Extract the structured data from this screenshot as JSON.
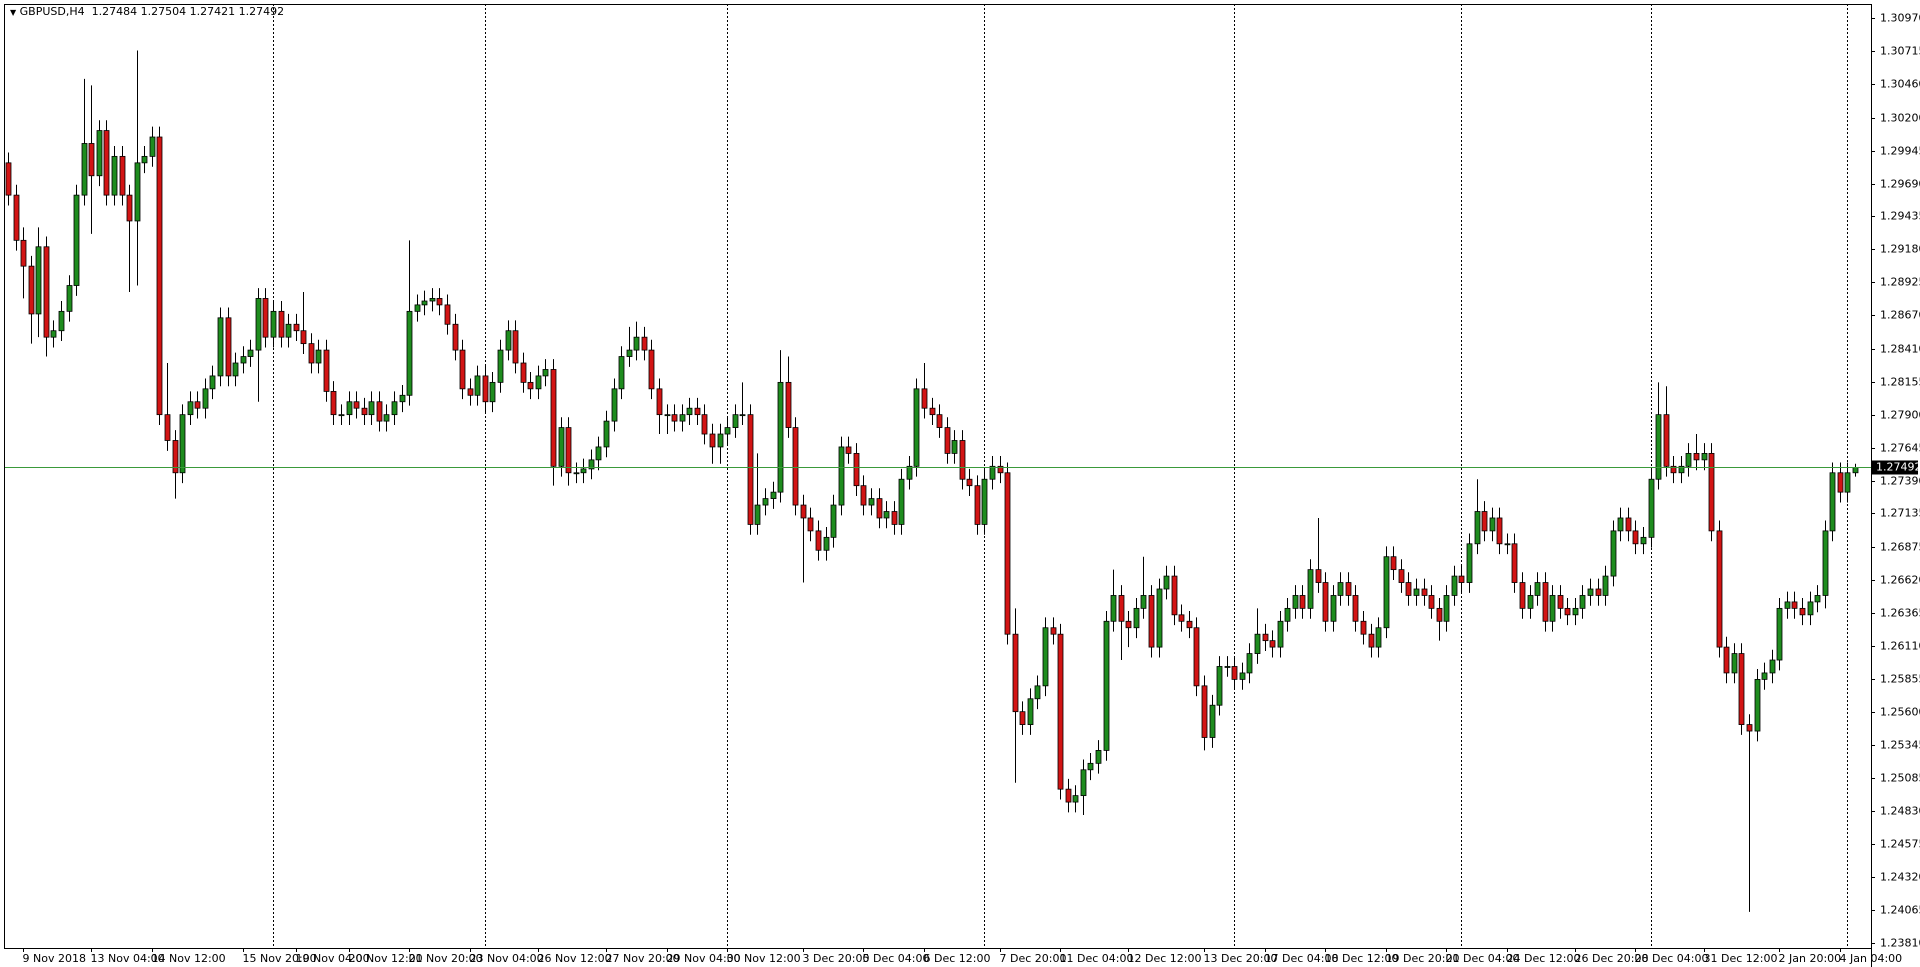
{
  "chart_data": {
    "type": "candlestick",
    "symbol": "GBPUSD,H4",
    "header_values": [
      1.27484,
      1.27504,
      1.27421,
      1.27492
    ],
    "up_color": "#1e8c1e",
    "down_color": "#d21414",
    "price_line_color": "#3a9a3a",
    "ylim": [
      1.2377,
      1.3108
    ],
    "yticks": [
      {
        "value": 1.3097,
        "label": "1.30970"
      },
      1.30715,
      {
        "value": 1.3046,
        "label": "1.30460"
      },
      {
        "value": 1.302,
        "label": "1.30200"
      },
      1.29945,
      {
        "value": 1.2969,
        "label": "1.29690"
      },
      1.29435,
      {
        "value": 1.2918,
        "label": "1.29180"
      },
      1.28925,
      {
        "value": 1.2867,
        "label": "1.28670"
      },
      {
        "value": 1.2841,
        "label": "1.28410"
      },
      1.28155,
      {
        "value": 1.279,
        "label": "1.27900"
      },
      1.27645,
      {
        "value": 1.2739,
        "label": "1.27390"
      },
      1.27135,
      1.26875,
      {
        "value": 1.2662,
        "label": "1.26620"
      },
      1.26365,
      {
        "value": 1.2611,
        "label": "1.26110"
      },
      1.25855,
      {
        "value": 1.256,
        "label": "1.25600"
      },
      1.25345,
      1.25085,
      {
        "value": 1.2483,
        "label": "1.24830"
      },
      1.24575,
      {
        "value": 1.2432,
        "label": "1.24320"
      },
      1.24065,
      {
        "value": 1.2381,
        "label": "1.23810"
      }
    ],
    "x": [
      null,
      null,
      "9 Nov 2018",
      null,
      null,
      null,
      null,
      null,
      null,
      null,
      null,
      "13 Nov 04:00",
      null,
      null,
      null,
      null,
      null,
      null,
      null,
      "14 Nov 12:00",
      null,
      null,
      null,
      null,
      null,
      null,
      null,
      null,
      null,
      null,
      null,
      "15 Nov 20:00",
      null,
      null,
      null,
      null,
      null,
      null,
      "19 Nov 04:00",
      null,
      null,
      null,
      null,
      null,
      null,
      "20 Nov 12:00",
      null,
      null,
      null,
      null,
      null,
      null,
      null,
      "21 Nov 20:00",
      null,
      null,
      null,
      null,
      null,
      null,
      null,
      "23 Nov 04:00",
      null,
      null,
      null,
      null,
      null,
      null,
      null,
      null,
      "26 Nov 12:00",
      null,
      null,
      null,
      null,
      null,
      null,
      null,
      null,
      "27 Nov 20:00",
      null,
      null,
      null,
      null,
      null,
      null,
      null,
      "29 Nov 04:00",
      null,
      null,
      null,
      null,
      null,
      null,
      null,
      "30 Nov 12:00",
      null,
      null,
      null,
      null,
      null,
      null,
      null,
      null,
      null,
      "3 Dec 20:00",
      null,
      null,
      null,
      null,
      null,
      null,
      null,
      "5 Dec 04:00",
      null,
      null,
      null,
      null,
      null,
      null,
      null,
      "6 Dec 12:00",
      null,
      null,
      null,
      null,
      null,
      null,
      null,
      null,
      null,
      "7 Dec 20:00",
      null,
      null,
      null,
      null,
      null,
      null,
      null,
      "11 Dec 04:00",
      null,
      null,
      null,
      null,
      null,
      null,
      null,
      null,
      "12 Dec 12:00",
      null,
      null,
      null,
      null,
      null,
      null,
      null,
      null,
      null,
      "13 Dec 20:00",
      null,
      null,
      null,
      null,
      null,
      null,
      null,
      "17 Dec 04:00",
      null,
      null,
      null,
      null,
      null,
      null,
      null,
      "18 Dec 12:00",
      null,
      null,
      null,
      null,
      null,
      null,
      null,
      "19 Dec 20:00",
      null,
      null,
      null,
      null,
      null,
      null,
      null,
      "21 Dec 04:00",
      null,
      null,
      null,
      null,
      null,
      null,
      null,
      "24 Dec 12:00",
      null,
      null,
      null,
      null,
      null,
      null,
      null,
      null,
      "26 Dec 20:00",
      null,
      null,
      null,
      null,
      null,
      null,
      null,
      "28 Dec 04:00",
      null,
      null,
      null,
      null,
      null,
      null,
      null,
      null,
      "31 Dec 12:00",
      null,
      null,
      null,
      null,
      null,
      null,
      null,
      null,
      null,
      "2 Jan 20:00",
      null,
      null,
      null,
      null,
      null,
      null,
      null,
      "4 Jan 04:00",
      null,
      null
    ],
    "open": [
      1.2985,
      1.296,
      1.2925,
      1.2905,
      1.2868,
      1.292,
      1.285,
      1.2855,
      1.287,
      1.289,
      1.296,
      1.3,
      1.2975,
      1.301,
      1.296,
      1.299,
      1.296,
      1.294,
      1.2985,
      1.299,
      1.3005,
      1.279,
      1.277,
      1.2745,
      1.279,
      1.28,
      1.2795,
      1.281,
      1.282,
      1.2865,
      1.282,
      1.283,
      1.2835,
      1.284,
      1.288,
      1.285,
      1.287,
      1.285,
      1.286,
      1.2855,
      1.2845,
      1.283,
      1.284,
      1.2808,
      1.279,
      1.279,
      1.28,
      1.2795,
      1.279,
      1.28,
      1.2785,
      1.279,
      1.28,
      1.2805,
      1.287,
      1.2875,
      1.2878,
      1.288,
      1.2875,
      1.286,
      1.284,
      1.281,
      1.2805,
      1.282,
      1.28,
      1.2815,
      1.284,
      1.2855,
      1.283,
      1.2815,
      1.281,
      1.282,
      1.2825,
      1.275,
      1.278,
      1.2745,
      1.2745,
      1.2748,
      1.2755,
      1.2765,
      1.2785,
      1.281,
      1.2835,
      1.284,
      1.285,
      1.284,
      1.281,
      1.279,
      1.279,
      1.2785,
      1.279,
      1.2795,
      1.279,
      1.2775,
      1.2765,
      1.2775,
      1.278,
      1.279,
      1.279,
      1.2705,
      1.272,
      1.2725,
      1.273,
      1.2815,
      1.278,
      1.272,
      1.271,
      1.27,
      1.2685,
      1.2695,
      1.272,
      1.2765,
      1.276,
      1.2735,
      1.272,
      1.2725,
      1.271,
      1.2715,
      1.2705,
      1.274,
      1.275,
      1.281,
      1.2795,
      1.279,
      1.278,
      1.276,
      1.277,
      1.274,
      1.2735,
      1.2705,
      1.274,
      1.275,
      1.2745,
      1.262,
      1.256,
      1.255,
      1.257,
      1.258,
      1.2625,
      1.262,
      1.25,
      1.249,
      1.2495,
      1.2515,
      1.252,
      1.253,
      1.263,
      1.265,
      1.263,
      1.2625,
      1.264,
      1.265,
      1.261,
      1.2655,
      1.2665,
      1.2635,
      1.263,
      1.2625,
      1.258,
      1.254,
      1.2565,
      1.2595,
      1.2595,
      1.2585,
      1.259,
      1.2605,
      1.262,
      1.2615,
      1.261,
      1.263,
      1.264,
      1.265,
      1.264,
      1.267,
      1.266,
      1.263,
      1.265,
      1.266,
      1.265,
      1.263,
      1.262,
      1.261,
      1.2625,
      1.268,
      1.267,
      1.266,
      1.265,
      1.2655,
      1.265,
      1.264,
      1.263,
      1.265,
      1.2665,
      1.266,
      1.269,
      1.2715,
      1.27,
      1.271,
      1.269,
      1.269,
      1.266,
      1.264,
      1.265,
      1.266,
      1.263,
      1.265,
      1.264,
      1.2635,
      1.264,
      1.265,
      1.2655,
      1.265,
      1.2665,
      1.27,
      1.271,
      1.27,
      1.269,
      1.2695,
      1.274,
      1.279,
      1.275,
      1.2745,
      1.275,
      1.276,
      1.2755,
      1.276,
      1.27,
      1.261,
      1.259,
      1.2605,
      1.255,
      1.2545,
      1.2585,
      1.259,
      1.26,
      1.264,
      1.2645,
      1.264,
      1.2635,
      1.2645,
      1.265,
      1.27,
      1.2745,
      1.273,
      1.2745
    ],
    "high": [
      1.2993,
      1.2968,
      1.2935,
      1.2913,
      1.2935,
      1.2928,
      1.2863,
      1.2878,
      1.2898,
      1.2968,
      1.305,
      1.3045,
      1.3018,
      1.3018,
      1.2998,
      1.2998,
      1.2968,
      1.3072,
      1.2998,
      1.3013,
      1.3013,
      1.283,
      1.2778,
      1.2798,
      1.2808,
      1.2808,
      1.2818,
      1.2828,
      1.2873,
      1.2873,
      1.2838,
      1.2843,
      1.2848,
      1.2888,
      1.2888,
      1.2878,
      1.2878,
      1.2868,
      1.2868,
      1.2885,
      1.2853,
      1.2848,
      1.2848,
      1.2816,
      1.2798,
      1.2808,
      1.2808,
      1.2803,
      1.2808,
      1.2808,
      1.2798,
      1.2808,
      1.2813,
      1.2925,
      1.2883,
      1.2886,
      1.2888,
      1.2888,
      1.2883,
      1.2868,
      1.2848,
      1.2818,
      1.2828,
      1.2828,
      1.2823,
      1.2848,
      1.2863,
      1.2863,
      1.2838,
      1.2823,
      1.2828,
      1.2833,
      1.2833,
      1.2788,
      1.2788,
      1.2753,
      1.2756,
      1.2763,
      1.2773,
      1.2793,
      1.2818,
      1.2843,
      1.2858,
      1.2862,
      1.2858,
      1.2848,
      1.2818,
      1.2798,
      1.2798,
      1.2798,
      1.2803,
      1.2803,
      1.2798,
      1.2783,
      1.2783,
      1.2788,
      1.2798,
      1.2815,
      1.2798,
      1.276,
      1.2733,
      1.2738,
      1.284,
      1.2835,
      1.2788,
      1.2728,
      1.2718,
      1.2708,
      1.2703,
      1.2728,
      1.2773,
      1.2773,
      1.2768,
      1.2743,
      1.2733,
      1.2733,
      1.2723,
      1.2723,
      1.2748,
      1.2758,
      1.2818,
      1.283,
      1.2803,
      1.2798,
      1.2788,
      1.2778,
      1.2778,
      1.2748,
      1.2743,
      1.2748,
      1.2758,
      1.2758,
      1.2753,
      1.264,
      1.2568,
      1.2578,
      1.2588,
      1.2633,
      1.2633,
      1.2628,
      1.2508,
      1.2503,
      1.2523,
      1.2528,
      1.2538,
      1.2638,
      1.267,
      1.2658,
      1.2638,
      1.2648,
      1.268,
      1.2658,
      1.2663,
      1.2673,
      1.2673,
      1.2643,
      1.2638,
      1.2633,
      1.2588,
      1.2573,
      1.2603,
      1.2603,
      1.2603,
      1.2598,
      1.2613,
      1.264,
      1.2628,
      1.2623,
      1.2638,
      1.2648,
      1.2658,
      1.2658,
      1.2678,
      1.271,
      1.2668,
      1.2658,
      1.2668,
      1.2668,
      1.2658,
      1.2638,
      1.2628,
      1.2633,
      1.2688,
      1.2688,
      1.2678,
      1.2668,
      1.2663,
      1.2663,
      1.2658,
      1.2648,
      1.2658,
      1.2673,
      1.2673,
      1.2698,
      1.274,
      1.2723,
      1.2718,
      1.2718,
      1.2698,
      1.2698,
      1.2668,
      1.2658,
      1.2668,
      1.2668,
      1.2658,
      1.2658,
      1.2648,
      1.2648,
      1.2658,
      1.2663,
      1.2663,
      1.2673,
      1.2708,
      1.2718,
      1.2718,
      1.2708,
      1.2703,
      1.2748,
      1.2815,
      1.2812,
      1.2758,
      1.2758,
      1.2768,
      1.2775,
      1.2768,
      1.2768,
      1.2708,
      1.2618,
      1.2613,
      1.2613,
      1.2558,
      1.2593,
      1.2598,
      1.2608,
      1.2648,
      1.2653,
      1.2653,
      1.2648,
      1.2653,
      1.2658,
      1.2708,
      1.2753,
      1.2753,
      1.2753,
      1.2752
    ],
    "low": [
      1.2952,
      1.2917,
      1.288,
      1.2845,
      1.285,
      1.2835,
      1.2842,
      1.2847,
      1.2862,
      1.2882,
      1.2952,
      1.293,
      1.2967,
      1.2952,
      1.2952,
      1.2952,
      1.2885,
      1.289,
      1.2977,
      1.2982,
      1.2782,
      1.2762,
      1.2725,
      1.2737,
      1.2782,
      1.2787,
      1.2787,
      1.2802,
      1.2812,
      1.2812,
      1.2812,
      1.2822,
      1.2827,
      1.28,
      1.2842,
      1.2842,
      1.2842,
      1.2842,
      1.2847,
      1.2837,
      1.2822,
      1.2822,
      1.28,
      1.2782,
      1.2782,
      1.2782,
      1.2787,
      1.2782,
      1.2782,
      1.2777,
      1.2777,
      1.2782,
      1.2792,
      1.2797,
      1.2862,
      1.2867,
      1.287,
      1.2867,
      1.2852,
      1.2832,
      1.2802,
      1.2797,
      1.2797,
      1.2792,
      1.2792,
      1.2807,
      1.2832,
      1.2822,
      1.2807,
      1.2802,
      1.2802,
      1.2812,
      1.2735,
      1.2742,
      1.2735,
      1.2737,
      1.2737,
      1.274,
      1.2747,
      1.2757,
      1.2777,
      1.2802,
      1.2827,
      1.2832,
      1.2832,
      1.2802,
      1.2775,
      1.2775,
      1.2777,
      1.2777,
      1.2782,
      1.2782,
      1.2767,
      1.2752,
      1.2752,
      1.2767,
      1.2772,
      1.2782,
      1.2697,
      1.2697,
      1.2712,
      1.2717,
      1.2722,
      1.2772,
      1.2712,
      1.266,
      1.2692,
      1.2677,
      1.2677,
      1.2687,
      1.2712,
      1.2752,
      1.2727,
      1.2712,
      1.2712,
      1.2702,
      1.2702,
      1.2697,
      1.2697,
      1.2732,
      1.2742,
      1.2787,
      1.2782,
      1.2772,
      1.2752,
      1.2752,
      1.2732,
      1.2727,
      1.2697,
      1.2697,
      1.2732,
      1.2737,
      1.2612,
      1.2505,
      1.2542,
      1.2542,
      1.2562,
      1.2572,
      1.2612,
      1.2492,
      1.2482,
      1.2482,
      1.248,
      1.2507,
      1.2512,
      1.2522,
      1.2622,
      1.26,
      1.261,
      1.2617,
      1.2632,
      1.2602,
      1.2602,
      1.2647,
      1.2627,
      1.2622,
      1.2617,
      1.2572,
      1.253,
      1.2532,
      1.2557,
      1.2587,
      1.2577,
      1.2577,
      1.2582,
      1.2597,
      1.2607,
      1.2602,
      1.2602,
      1.2622,
      1.2632,
      1.2632,
      1.2632,
      1.2652,
      1.2622,
      1.2622,
      1.2642,
      1.2642,
      1.2622,
      1.2612,
      1.2602,
      1.2602,
      1.2617,
      1.2662,
      1.2652,
      1.2642,
      1.2642,
      1.2642,
      1.2632,
      1.2615,
      1.2622,
      1.2642,
      1.2652,
      1.2652,
      1.2682,
      1.2692,
      1.2692,
      1.2682,
      1.2682,
      1.2652,
      1.2632,
      1.2632,
      1.2642,
      1.2622,
      1.2622,
      1.2632,
      1.2627,
      1.2627,
      1.2632,
      1.2642,
      1.2642,
      1.2642,
      1.2657,
      1.2692,
      1.2692,
      1.2682,
      1.2682,
      1.2687,
      1.2732,
      1.2742,
      1.2737,
      1.2737,
      1.2742,
      1.2747,
      1.2747,
      1.2692,
      1.2602,
      1.2582,
      1.2582,
      1.2542,
      1.2405,
      1.2537,
      1.2577,
      1.2582,
      1.2592,
      1.2632,
      1.2632,
      1.2627,
      1.2627,
      1.2637,
      1.264,
      1.2692,
      1.2722,
      1.2722,
      1.2742
    ],
    "close": [
      1.296,
      1.2925,
      1.2905,
      1.2868,
      1.292,
      1.285,
      1.2855,
      1.287,
      1.289,
      1.296,
      1.3,
      1.2975,
      1.301,
      1.296,
      1.299,
      1.296,
      1.294,
      1.2985,
      1.299,
      1.3005,
      1.279,
      1.277,
      1.2745,
      1.279,
      1.28,
      1.2795,
      1.281,
      1.282,
      1.2865,
      1.282,
      1.283,
      1.2835,
      1.284,
      1.288,
      1.285,
      1.287,
      1.285,
      1.286,
      1.2855,
      1.2845,
      1.283,
      1.284,
      1.2808,
      1.279,
      1.279,
      1.28,
      1.2795,
      1.279,
      1.28,
      1.2785,
      1.279,
      1.28,
      1.2805,
      1.287,
      1.2875,
      1.2878,
      1.288,
      1.2875,
      1.286,
      1.284,
      1.281,
      1.2805,
      1.282,
      1.28,
      1.2815,
      1.284,
      1.2855,
      1.283,
      1.2815,
      1.281,
      1.282,
      1.2825,
      1.275,
      1.278,
      1.2745,
      1.2745,
      1.2748,
      1.2755,
      1.2765,
      1.2785,
      1.281,
      1.2835,
      1.284,
      1.285,
      1.284,
      1.281,
      1.279,
      1.279,
      1.2785,
      1.279,
      1.2795,
      1.279,
      1.2775,
      1.2765,
      1.2775,
      1.278,
      1.279,
      1.279,
      1.2705,
      1.272,
      1.2725,
      1.273,
      1.2815,
      1.278,
      1.272,
      1.271,
      1.27,
      1.2685,
      1.2695,
      1.272,
      1.2765,
      1.276,
      1.2735,
      1.272,
      1.2725,
      1.271,
      1.2715,
      1.2705,
      1.274,
      1.275,
      1.281,
      1.2795,
      1.279,
      1.278,
      1.276,
      1.277,
      1.274,
      1.2735,
      1.2705,
      1.274,
      1.275,
      1.2745,
      1.262,
      1.256,
      1.255,
      1.257,
      1.258,
      1.2625,
      1.262,
      1.25,
      1.249,
      1.2495,
      1.2515,
      1.252,
      1.253,
      1.263,
      1.265,
      1.263,
      1.2625,
      1.264,
      1.265,
      1.261,
      1.2655,
      1.2665,
      1.2635,
      1.263,
      1.2625,
      1.258,
      1.254,
      1.2565,
      1.2595,
      1.2595,
      1.2585,
      1.259,
      1.2605,
      1.262,
      1.2615,
      1.261,
      1.263,
      1.264,
      1.265,
      1.264,
      1.267,
      1.266,
      1.263,
      1.265,
      1.266,
      1.265,
      1.263,
      1.262,
      1.261,
      1.2625,
      1.268,
      1.267,
      1.266,
      1.265,
      1.2655,
      1.265,
      1.264,
      1.263,
      1.265,
      1.2665,
      1.266,
      1.269,
      1.2715,
      1.27,
      1.271,
      1.269,
      1.269,
      1.266,
      1.264,
      1.265,
      1.266,
      1.263,
      1.265,
      1.264,
      1.2635,
      1.264,
      1.265,
      1.2655,
      1.265,
      1.2665,
      1.27,
      1.271,
      1.27,
      1.269,
      1.2695,
      1.274,
      1.279,
      1.275,
      1.2745,
      1.275,
      1.276,
      1.2755,
      1.276,
      1.27,
      1.261,
      1.259,
      1.2605,
      1.255,
      1.2545,
      1.2585,
      1.259,
      1.26,
      1.264,
      1.2645,
      1.264,
      1.2635,
      1.2645,
      1.265,
      1.27,
      1.2745,
      1.273,
      1.2745,
      1.2749
    ]
  }
}
